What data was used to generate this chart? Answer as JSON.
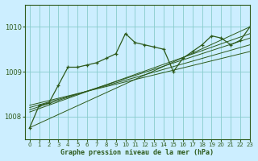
{
  "title": "Graphe pression niveau de la mer (hPa)",
  "background_color": "#cceeff",
  "grid_color": "#88cccc",
  "line_color": "#2d5a1b",
  "xlim": [
    -0.5,
    23
  ],
  "ylim": [
    1007.5,
    1010.5
  ],
  "yticks": [
    1008,
    1009,
    1010
  ],
  "xticks": [
    0,
    1,
    2,
    3,
    4,
    5,
    6,
    7,
    8,
    9,
    10,
    11,
    12,
    13,
    14,
    15,
    16,
    17,
    18,
    19,
    20,
    21,
    22,
    23
  ],
  "trend_lines": [
    {
      "x0": 0,
      "y0": 1007.75,
      "x1": 23,
      "y1": 1010.0
    },
    {
      "x0": 0,
      "y0": 1008.1,
      "x1": 23,
      "y1": 1009.85
    },
    {
      "x0": 0,
      "y0": 1008.15,
      "x1": 23,
      "y1": 1009.75
    },
    {
      "x0": 0,
      "y0": 1008.2,
      "x1": 23,
      "y1": 1009.6
    },
    {
      "x0": 0,
      "y0": 1008.25,
      "x1": 23,
      "y1": 1009.45
    }
  ],
  "main_series_x": [
    0,
    1,
    2,
    3,
    4,
    5,
    6,
    7,
    8,
    9,
    10,
    11,
    12,
    13,
    14,
    15,
    16,
    17,
    18,
    19,
    20,
    21,
    22,
    23
  ],
  "main_series_y": [
    1007.75,
    1008.25,
    1008.3,
    1008.7,
    1009.1,
    1009.1,
    1009.15,
    1009.2,
    1009.3,
    1009.4,
    1009.85,
    1009.65,
    1009.6,
    1009.55,
    1009.5,
    1009.0,
    1009.3,
    1009.45,
    1009.6,
    1009.8,
    1009.75,
    1009.6,
    1009.7,
    1010.0
  ]
}
